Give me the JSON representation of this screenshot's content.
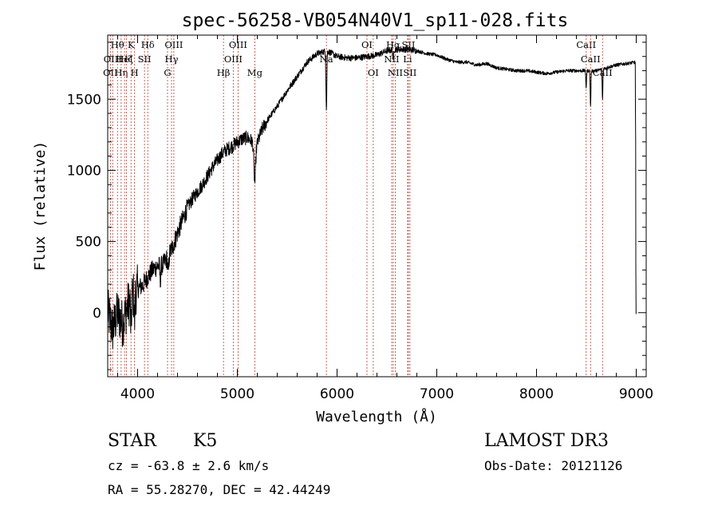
{
  "chart_data": {
    "type": "line",
    "title": "spec-56258-VB054N40V1_sp11-028.fits",
    "xlabel": "Wavelength (Å)",
    "ylabel": "Flux (relative)",
    "xlim": [
      3700,
      9100
    ],
    "ylim": [
      -450,
      1950
    ],
    "xticks": [
      4000,
      5000,
      6000,
      7000,
      8000,
      9000
    ],
    "yticks": [
      0,
      500,
      1000,
      1500
    ],
    "continuum": [
      [
        3700,
        10
      ],
      [
        3750,
        -120
      ],
      [
        3800,
        0
      ],
      [
        3850,
        -80
      ],
      [
        3900,
        50
      ],
      [
        3950,
        120
      ],
      [
        4000,
        170
      ],
      [
        4050,
        190
      ],
      [
        4100,
        250
      ],
      [
        4150,
        300
      ],
      [
        4200,
        330
      ],
      [
        4250,
        330
      ],
      [
        4300,
        390
      ],
      [
        4350,
        460
      ],
      [
        4400,
        560
      ],
      [
        4450,
        650
      ],
      [
        4500,
        740
      ],
      [
        4550,
        800
      ],
      [
        4600,
        850
      ],
      [
        4650,
        900
      ],
      [
        4700,
        960
      ],
      [
        4750,
        1020
      ],
      [
        4800,
        1070
      ],
      [
        4850,
        1120
      ],
      [
        4900,
        1150
      ],
      [
        4950,
        1170
      ],
      [
        5000,
        1200
      ],
      [
        5050,
        1220
      ],
      [
        5100,
        1230
      ],
      [
        5150,
        1200
      ],
      [
        5200,
        1190
      ],
      [
        5250,
        1290
      ],
      [
        5300,
        1350
      ],
      [
        5400,
        1450
      ],
      [
        5500,
        1560
      ],
      [
        5600,
        1660
      ],
      [
        5700,
        1760
      ],
      [
        5800,
        1820
      ],
      [
        5900,
        1840
      ],
      [
        6000,
        1800
      ],
      [
        6100,
        1790
      ],
      [
        6200,
        1790
      ],
      [
        6300,
        1800
      ],
      [
        6400,
        1810
      ],
      [
        6500,
        1840
      ],
      [
        6600,
        1850
      ],
      [
        6700,
        1850
      ],
      [
        6800,
        1840
      ],
      [
        6900,
        1820
      ],
      [
        7000,
        1810
      ],
      [
        7100,
        1780
      ],
      [
        7200,
        1760
      ],
      [
        7300,
        1760
      ],
      [
        7400,
        1740
      ],
      [
        7500,
        1750
      ],
      [
        7600,
        1720
      ],
      [
        7700,
        1710
      ],
      [
        7800,
        1700
      ],
      [
        7900,
        1700
      ],
      [
        8000,
        1690
      ],
      [
        8100,
        1680
      ],
      [
        8200,
        1690
      ],
      [
        8300,
        1700
      ],
      [
        8400,
        1700
      ],
      [
        8500,
        1700
      ],
      [
        8600,
        1700
      ],
      [
        8700,
        1720
      ],
      [
        8800,
        1740
      ],
      [
        8900,
        1750
      ],
      [
        9000,
        1760
      ]
    ],
    "absorption_features": [
      {
        "w": 3934,
        "depth": 250,
        "width": 6
      },
      {
        "w": 3969,
        "depth": 200,
        "width": 6
      },
      {
        "w": 4227,
        "depth": 120,
        "width": 5
      },
      {
        "w": 4307,
        "depth": 120,
        "width": 8
      },
      {
        "w": 5175,
        "depth": 280,
        "width": 12
      },
      {
        "w": 5893,
        "depth": 420,
        "width": 6
      },
      {
        "w": 6563,
        "depth": 80,
        "width": 5
      },
      {
        "w": 8498,
        "depth": 120,
        "width": 5
      },
      {
        "w": 8542,
        "depth": 260,
        "width": 5
      },
      {
        "w": 8662,
        "depth": 220,
        "width": 5
      }
    ],
    "noise": [
      {
        "w_from": 3700,
        "w_to": 4000,
        "amp": 170
      },
      {
        "w_from": 4000,
        "w_to": 4500,
        "amp": 70
      },
      {
        "w_from": 4500,
        "w_to": 5300,
        "amp": 50
      },
      {
        "w_from": 5300,
        "w_to": 6800,
        "amp": 22
      },
      {
        "w_from": 6800,
        "w_to": 9000,
        "amp": 12
      }
    ],
    "end_drop": {
      "start_w": 8990,
      "values": [
        1450,
        1200,
        300,
        -10
      ]
    },
    "lines_color": "#c0392b",
    "line_markers": [
      {
        "w": 3727,
        "label": "OII",
        "row": 2
      },
      {
        "w": 3750,
        "label": "OIII",
        "row": 1
      },
      {
        "w": 3798,
        "label": "Hθ",
        "row": 0
      },
      {
        "w": 3835,
        "label": "Hη",
        "row": 2
      },
      {
        "w": 3869,
        "label": "HeI",
        "row": 1
      },
      {
        "w": 3889,
        "label": "Hζ",
        "row": 1
      },
      {
        "w": 3934,
        "label": "K",
        "row": 0
      },
      {
        "w": 3969,
        "label": "H",
        "row": 2
      },
      {
        "w": 4069,
        "label": "SII",
        "row": 1
      },
      {
        "w": 4102,
        "label": "Hδ",
        "row": 0
      },
      {
        "w": 4300,
        "label": "G",
        "row": 2
      },
      {
        "w": 4340,
        "label": "Hγ",
        "row": 1
      },
      {
        "w": 4363,
        "label": "OIII",
        "row": 0
      },
      {
        "w": 4861,
        "label": "Hβ",
        "row": 2
      },
      {
        "w": 4959,
        "label": "OIII",
        "row": 1
      },
      {
        "w": 5007,
        "label": "OIII",
        "row": 0
      },
      {
        "w": 5175,
        "label": "Mg",
        "row": 2
      },
      {
        "w": 5893,
        "label": "Na",
        "row": 1
      },
      {
        "w": 6300,
        "label": "OI",
        "row": 0
      },
      {
        "w": 6363,
        "label": "OI",
        "row": 2
      },
      {
        "w": 6548,
        "label": "NII",
        "row": 1
      },
      {
        "w": 6563,
        "label": "Hα",
        "row": 0
      },
      {
        "w": 6584,
        "label": "NII",
        "row": 2
      },
      {
        "w": 6707,
        "label": "Li",
        "row": 1
      },
      {
        "w": 6716,
        "label": "SII",
        "row": 0
      },
      {
        "w": 6731,
        "label": "SII",
        "row": 2
      },
      {
        "w": 8498,
        "label": "CaII",
        "row": 0
      },
      {
        "w": 8542,
        "label": "CaII",
        "row": 1
      },
      {
        "w": 8662,
        "label": "CaII",
        "row": 2
      }
    ]
  },
  "info": {
    "object_class": "STAR",
    "subclass": "K5",
    "survey": "LAMOST DR3",
    "redshift": "cz = -63.8 ± 2.6 km/s",
    "obs_date": "Obs-Date: 20121126",
    "coordinates": "RA =  55.28270, DEC =  42.44249"
  }
}
